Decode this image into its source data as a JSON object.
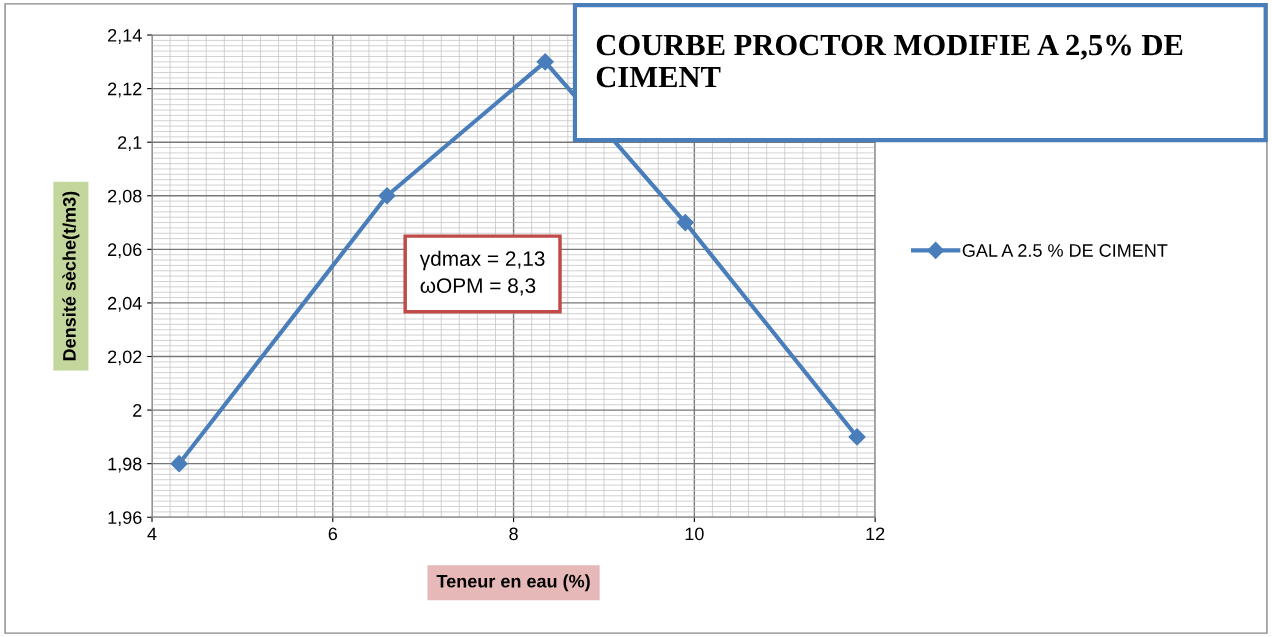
{
  "chart_data": {
    "type": "line",
    "title": "COURBE PROCTOR MODIFIE A 2,5% DE CIMENT",
    "xlabel": "Teneur en eau (%)",
    "ylabel": "Densité sèche(t/m3)",
    "x": [
      4.3,
      6.6,
      8.35,
      9.9,
      11.8
    ],
    "series": [
      {
        "name": "GAL A 2.5 % DE CIMENT",
        "color": "#4a7ebb",
        "values": [
          1.98,
          2.08,
          2.13,
          2.07,
          1.99
        ]
      }
    ],
    "xlim": [
      4,
      12
    ],
    "xticks": [
      4,
      6,
      8,
      10,
      12
    ],
    "ylim": [
      1.96,
      2.14
    ],
    "yticks": [
      {
        "value": 1.96,
        "label": "1,96"
      },
      {
        "value": 1.98,
        "label": "1,98"
      },
      {
        "value": 2.0,
        "label": "2"
      },
      {
        "value": 2.02,
        "label": "2,02"
      },
      {
        "value": 2.04,
        "label": "2,04"
      },
      {
        "value": 2.06,
        "label": "2,06"
      },
      {
        "value": 2.08,
        "label": "2,08"
      },
      {
        "value": 2.1,
        "label": "2,1"
      },
      {
        "value": 2.12,
        "label": "2,12"
      },
      {
        "value": 2.14,
        "label": "2,14"
      }
    ],
    "annotations": [
      "γdmax = 2,13\nωOPM = 8,3"
    ],
    "grid": true,
    "legend": "right",
    "marker": "diamond",
    "line_style": "solid"
  }
}
